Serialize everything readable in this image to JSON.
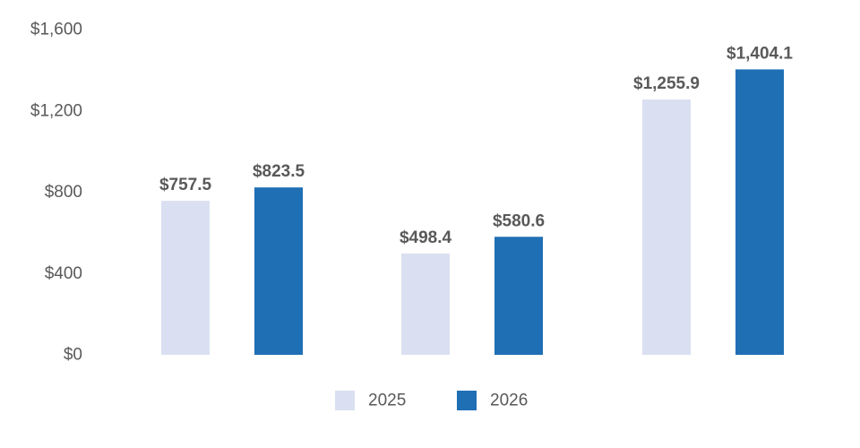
{
  "chart_data": {
    "type": "bar",
    "categories": [
      "",
      "",
      ""
    ],
    "series": [
      {
        "name": "2025",
        "color": "#dae0f1",
        "values": [
          757.5,
          498.4,
          1255.9
        ],
        "labels": [
          "$757.5",
          "$498.4",
          "$1,255.9"
        ]
      },
      {
        "name": "2026",
        "color": "#1f6fb5",
        "values": [
          823.5,
          580.6,
          1404.1
        ],
        "labels": [
          "$823.5",
          "$580.6",
          "$1,404.1"
        ]
      }
    ],
    "title": "",
    "xlabel": "",
    "ylabel": "",
    "ylim": [
      0,
      1600
    ],
    "yticks": [
      0,
      400,
      800,
      1200,
      1600
    ],
    "ytick_labels": [
      "$0",
      "$400",
      "$800",
      "$1,200",
      "$1,600"
    ],
    "grid": false,
    "legend_position": "bottom-center"
  }
}
